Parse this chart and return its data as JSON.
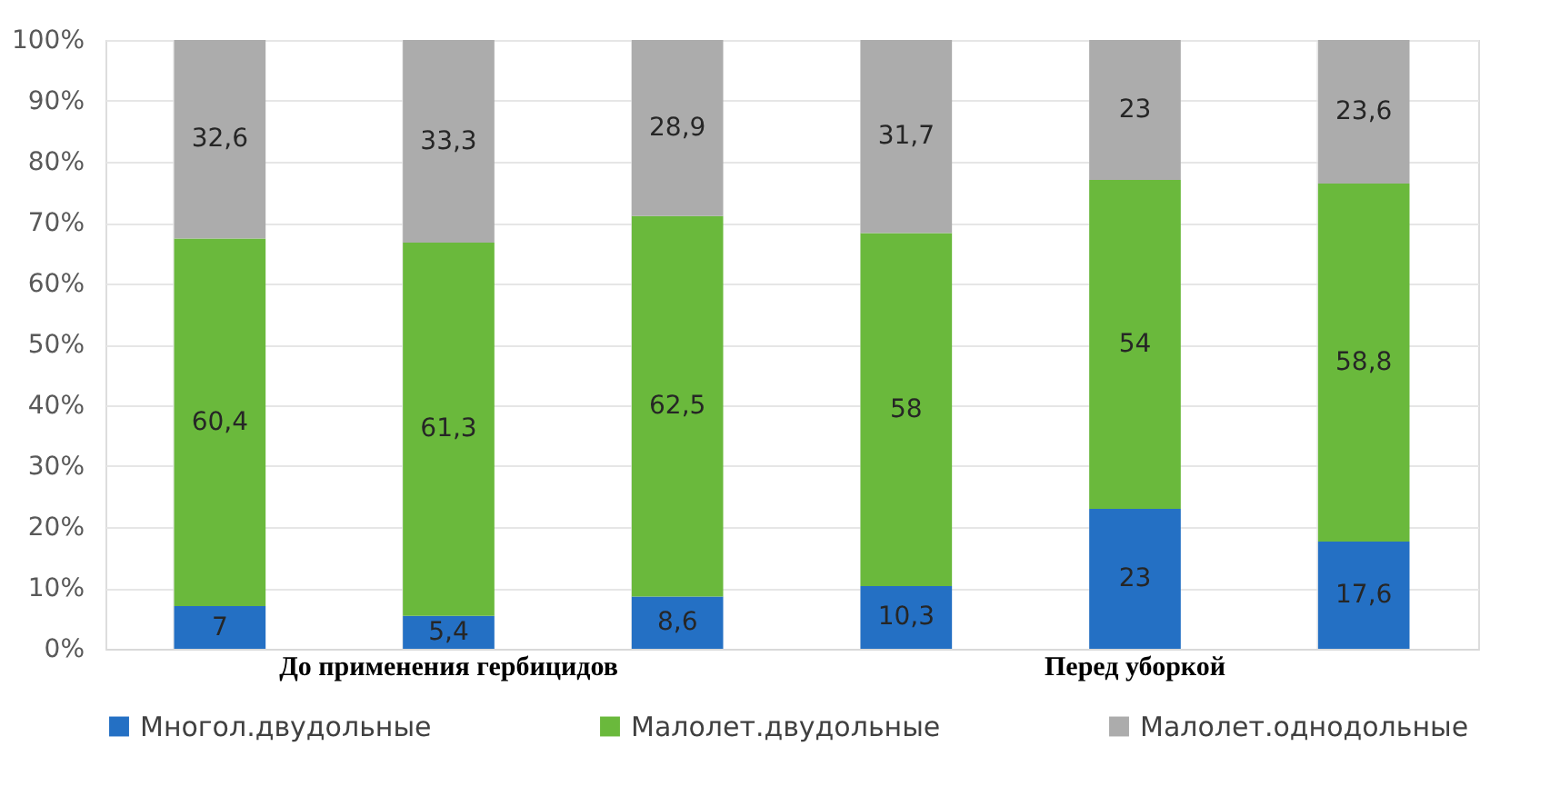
{
  "chart_data": {
    "type": "bar",
    "stacked": true,
    "categories": [
      null,
      "До применения гербицидов",
      null,
      null,
      "Перед уборкой",
      null
    ],
    "series": [
      {
        "name": "Многол.двудольные",
        "color": "#2470c4",
        "values": [
          7,
          5.4,
          8.6,
          10.3,
          23,
          17.6
        ],
        "value_labels": [
          "7",
          "5,4",
          "8,6",
          "10,3",
          "23",
          "17,6"
        ]
      },
      {
        "name": "Малолет.двудольные",
        "color": "#6ab93c",
        "values": [
          60.4,
          61.3,
          62.5,
          58,
          54,
          58.8
        ],
        "value_labels": [
          "60,4",
          "61,3",
          "62,5",
          "58",
          "54",
          "58,8"
        ]
      },
      {
        "name": "Малолет.однодольные",
        "color": "#acacac",
        "values": [
          32.6,
          33.3,
          28.9,
          31.7,
          23,
          23.6
        ],
        "value_labels": [
          "32,6",
          "33,3",
          "28,9",
          "31,7",
          "23",
          "23,6"
        ]
      }
    ],
    "ylim": [
      0,
      100
    ],
    "yticks": [
      {
        "value": 0,
        "label": "0%"
      },
      {
        "value": 10,
        "label": "10%"
      },
      {
        "value": 20,
        "label": "20%"
      },
      {
        "value": 30,
        "label": "30%"
      },
      {
        "value": 40,
        "label": "40%"
      },
      {
        "value": 50,
        "label": "50%"
      },
      {
        "value": 60,
        "label": "60%"
      },
      {
        "value": 70,
        "label": "70%"
      },
      {
        "value": 80,
        "label": "80%"
      },
      {
        "value": 90,
        "label": "90%"
      },
      {
        "value": 100,
        "label": "100%"
      }
    ],
    "grid": true,
    "legend": "bottom"
  }
}
